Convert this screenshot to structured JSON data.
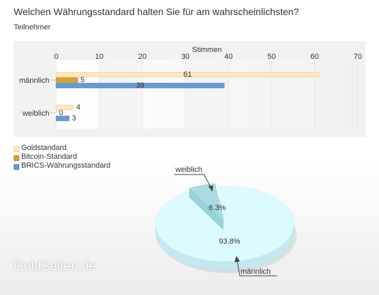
{
  "title": "Welchen Währungsstandard halten Sie für am wahrscheinlichsten?",
  "subtitle": "Teilnehmer",
  "watermark": "GoldSeiten.de",
  "colors": {
    "gold": "#fde9c0",
    "bitcoin": "#d8a235",
    "brics": "#6b9ad0",
    "pie_main": "#dcfbff",
    "pie_small": "#a9dbe0"
  },
  "chart_data": [
    {
      "type": "bar",
      "orientation": "horizontal",
      "xlabel": "Stimmen",
      "xlim": [
        0,
        70
      ],
      "xticks": [
        0,
        10,
        20,
        30,
        40,
        50,
        60,
        70
      ],
      "categories": [
        "männlich",
        "weiblich"
      ],
      "series": [
        {
          "name": "Goldstandard",
          "values": [
            61,
            4
          ]
        },
        {
          "name": "Bitcoin-Standard",
          "values": [
            5,
            0
          ]
        },
        {
          "name": "BRICS-Währungsstandard",
          "values": [
            39,
            3
          ]
        }
      ],
      "legend_position": "bottom-left",
      "grid": true
    },
    {
      "type": "pie",
      "labels": [
        "männlich",
        "weiblich"
      ],
      "values": [
        93.8,
        6.3
      ],
      "value_labels": [
        "93.8%",
        "6.3%"
      ]
    }
  ]
}
